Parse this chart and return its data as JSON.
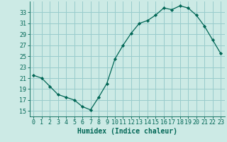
{
  "xlabel": "Humidex (Indice chaleur)",
  "ylabel": "",
  "background_color": "#cceae5",
  "grid_color": "#99cccc",
  "line_color": "#006655",
  "marker_color": "#006655",
  "x_values": [
    0,
    1,
    2,
    3,
    4,
    5,
    6,
    7,
    8,
    9,
    10,
    11,
    12,
    13,
    14,
    15,
    16,
    17,
    18,
    19,
    20,
    21,
    22,
    23
  ],
  "y_values": [
    21.5,
    21.0,
    19.5,
    18.0,
    17.5,
    17.0,
    15.8,
    15.2,
    17.5,
    20.0,
    24.5,
    27.0,
    29.2,
    31.0,
    31.5,
    32.5,
    33.8,
    33.5,
    34.2,
    33.8,
    32.5,
    30.5,
    28.0,
    25.5
  ],
  "ylim": [
    14,
    35
  ],
  "xlim": [
    -0.5,
    23.5
  ],
  "yticks": [
    15,
    17,
    19,
    21,
    23,
    25,
    27,
    29,
    31,
    33
  ],
  "xticks": [
    0,
    1,
    2,
    3,
    4,
    5,
    6,
    7,
    8,
    9,
    10,
    11,
    12,
    13,
    14,
    15,
    16,
    17,
    18,
    19,
    20,
    21,
    22,
    23
  ],
  "font_size": 6,
  "label_font_size": 7
}
